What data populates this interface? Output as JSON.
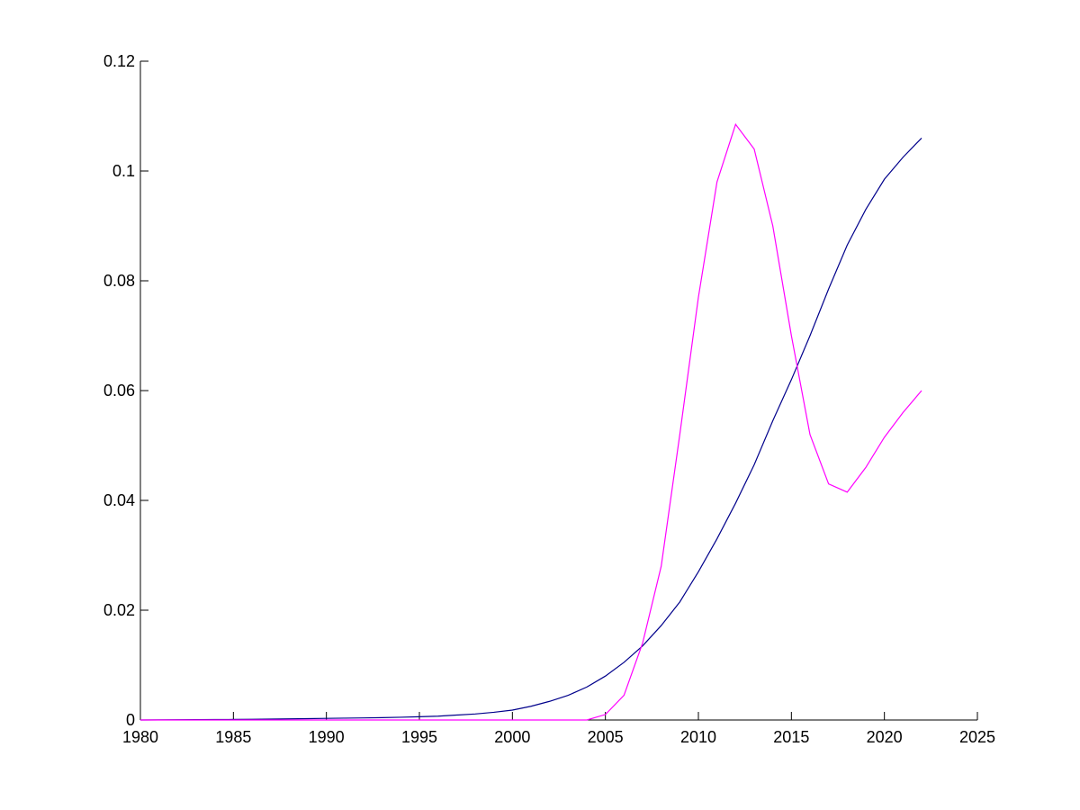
{
  "chart_data": {
    "type": "line",
    "x": [
      1980,
      1981,
      1982,
      1983,
      1984,
      1985,
      1986,
      1987,
      1988,
      1989,
      1990,
      1991,
      1992,
      1993,
      1994,
      1995,
      1996,
      1997,
      1998,
      1999,
      2000,
      2001,
      2002,
      2003,
      2004,
      2005,
      2006,
      2007,
      2008,
      2009,
      2010,
      2011,
      2012,
      2013,
      2014,
      2015,
      2016,
      2017,
      2018,
      2019,
      2020,
      2021,
      2022
    ],
    "series": [
      {
        "color": "#00008b",
        "values": [
          0,
          2e-05,
          4e-05,
          6e-05,
          8e-05,
          0.0001,
          0.00013,
          0.00016,
          0.0002,
          0.00025,
          0.0003,
          0.00034,
          0.00038,
          0.00043,
          0.0005,
          0.0006,
          0.0007,
          0.0009,
          0.0011,
          0.0014,
          0.0018,
          0.0025,
          0.0034,
          0.0045,
          0.006,
          0.008,
          0.0105,
          0.0135,
          0.0172,
          0.0215,
          0.027,
          0.033,
          0.0395,
          0.0465,
          0.0545,
          0.062,
          0.07,
          0.0785,
          0.0865,
          0.093,
          0.0985,
          0.1025,
          0.106
        ]
      },
      {
        "color": "#ff00ff",
        "values": [
          0,
          0,
          0,
          0,
          0,
          0,
          0,
          0,
          0,
          0,
          0,
          0,
          0,
          0,
          0,
          0,
          0,
          0,
          0,
          0,
          0,
          0,
          0,
          0,
          0,
          0.001,
          0.0045,
          0.014,
          0.028,
          0.052,
          0.077,
          0.098,
          0.1085,
          0.104,
          0.09,
          0.07,
          0.052,
          0.043,
          0.0415,
          0.046,
          0.0515,
          0.056,
          0.06
        ]
      }
    ],
    "xlim": [
      1980,
      2025
    ],
    "xticks": [
      1980,
      1985,
      1990,
      1995,
      2000,
      2005,
      2010,
      2015,
      2020,
      2025
    ],
    "ylim": [
      0,
      0.12
    ],
    "yticks": [
      0,
      0.02,
      0.04,
      0.06,
      0.08,
      0.1,
      0.12
    ]
  }
}
